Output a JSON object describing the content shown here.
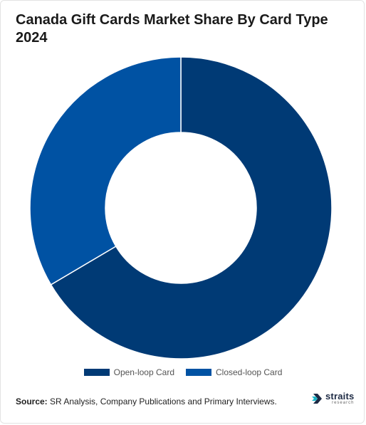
{
  "chart_data": {
    "type": "pie",
    "donut": true,
    "title": "Canada Gift Cards Market Share By Card Type 2024",
    "categories": [
      "Open-loop Card",
      "Closed-loop Card"
    ],
    "values": [
      66.5,
      33.5
    ],
    "colors": [
      "#003a75",
      "#0052a3"
    ],
    "legend_position": "bottom"
  },
  "footer": {
    "source_label": "Source:",
    "source_text": " SR Analysis, Company Publications and Primary Interviews."
  },
  "logo": {
    "word": "straits",
    "sub": "research",
    "icon": "straits-arrow-icon"
  }
}
